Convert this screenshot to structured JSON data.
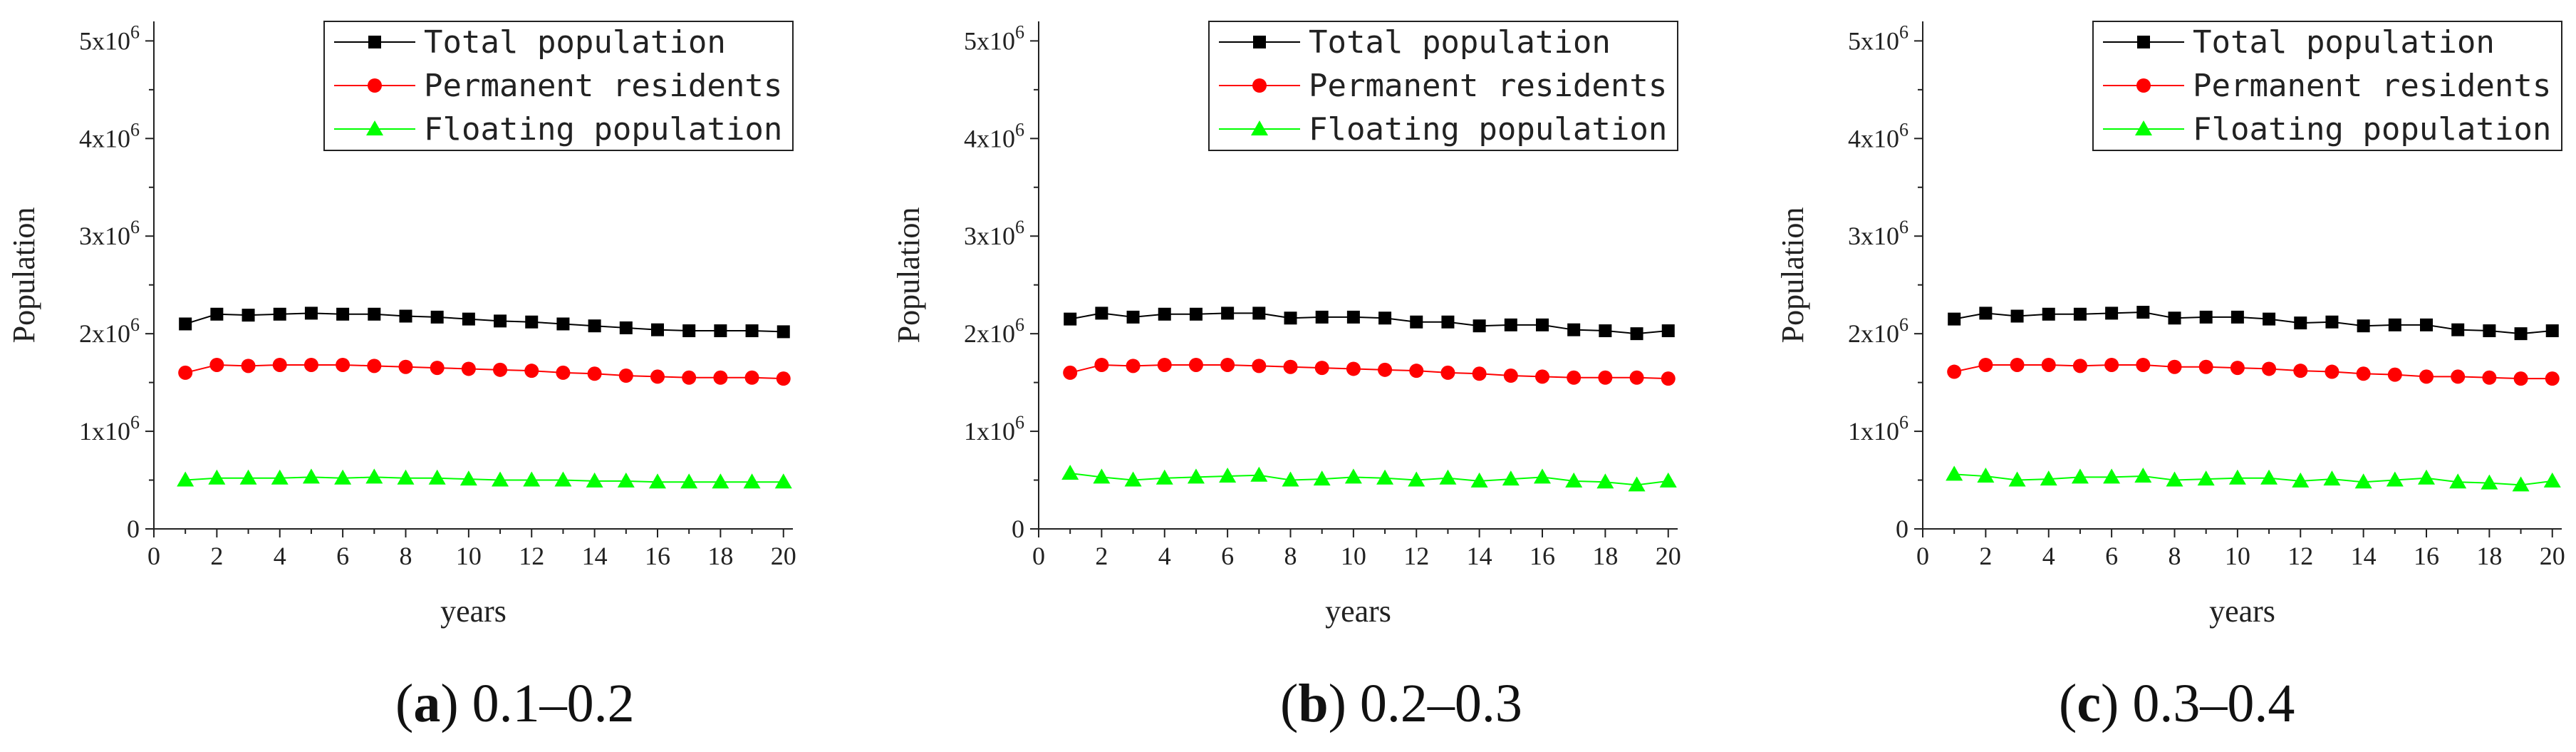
{
  "chart_data": [
    {
      "type": "line",
      "panel_label": "a",
      "caption": "0.1–0.2",
      "xlabel": "years",
      "ylabel": "Population",
      "xlim": [
        0,
        20.3
      ],
      "ylim": [
        0,
        5200000
      ],
      "x_ticks": [
        "0",
        "2",
        "4",
        "6",
        "8",
        "10",
        "12",
        "14",
        "16",
        "18",
        "20"
      ],
      "y_ticks": [
        {
          "label": "0",
          "value": 0
        },
        {
          "label": "1x10",
          "exp": "6",
          "value": 1000000
        },
        {
          "label": "2x10",
          "exp": "6",
          "value": 2000000
        },
        {
          "label": "3x10",
          "exp": "6",
          "value": 3000000
        },
        {
          "label": "4x10",
          "exp": "6",
          "value": 4000000
        },
        {
          "label": "5x10",
          "exp": "6",
          "value": 5000000
        }
      ],
      "legend_position": "top-right",
      "x": [
        1,
        2,
        3,
        4,
        5,
        6,
        7,
        8,
        9,
        10,
        11,
        12,
        13,
        14,
        15,
        16,
        17,
        18,
        19,
        20
      ],
      "series": [
        {
          "name": "Total population",
          "color": "#000000",
          "marker": "square",
          "values": [
            2100000,
            2200000,
            2190000,
            2200000,
            2210000,
            2200000,
            2200000,
            2180000,
            2170000,
            2150000,
            2130000,
            2120000,
            2100000,
            2080000,
            2060000,
            2040000,
            2030000,
            2030000,
            2030000,
            2020000
          ]
        },
        {
          "name": "Permanent residents",
          "color": "#ff0000",
          "marker": "circle",
          "values": [
            1600000,
            1680000,
            1670000,
            1680000,
            1680000,
            1680000,
            1670000,
            1660000,
            1650000,
            1640000,
            1630000,
            1620000,
            1600000,
            1590000,
            1570000,
            1560000,
            1550000,
            1550000,
            1550000,
            1540000
          ]
        },
        {
          "name": "Floating population",
          "color": "#00ff00",
          "marker": "triangle",
          "values": [
            500000,
            520000,
            520000,
            520000,
            530000,
            520000,
            530000,
            520000,
            520000,
            510000,
            500000,
            500000,
            500000,
            490000,
            490000,
            480000,
            480000,
            480000,
            480000,
            480000
          ]
        }
      ]
    },
    {
      "type": "line",
      "panel_label": "b",
      "caption": "0.2–0.3",
      "xlabel": "years",
      "ylabel": "Population",
      "xlim": [
        0,
        20.3
      ],
      "ylim": [
        0,
        5200000
      ],
      "x_ticks": [
        "0",
        "2",
        "4",
        "6",
        "8",
        "10",
        "12",
        "14",
        "16",
        "18",
        "20"
      ],
      "y_ticks": [
        {
          "label": "0",
          "value": 0
        },
        {
          "label": "1x10",
          "exp": "6",
          "value": 1000000
        },
        {
          "label": "2x10",
          "exp": "6",
          "value": 2000000
        },
        {
          "label": "3x10",
          "exp": "6",
          "value": 3000000
        },
        {
          "label": "4x10",
          "exp": "6",
          "value": 4000000
        },
        {
          "label": "5x10",
          "exp": "6",
          "value": 5000000
        }
      ],
      "legend_position": "top-right",
      "x": [
        1,
        2,
        3,
        4,
        5,
        6,
        7,
        8,
        9,
        10,
        11,
        12,
        13,
        14,
        15,
        16,
        17,
        18,
        19,
        20
      ],
      "series": [
        {
          "name": "Total population",
          "color": "#000000",
          "marker": "square",
          "values": [
            2150000,
            2210000,
            2170000,
            2200000,
            2200000,
            2210000,
            2210000,
            2160000,
            2170000,
            2170000,
            2160000,
            2120000,
            2120000,
            2080000,
            2090000,
            2090000,
            2040000,
            2030000,
            2000000,
            2030000
          ]
        },
        {
          "name": "Permanent residents",
          "color": "#ff0000",
          "marker": "circle",
          "values": [
            1600000,
            1680000,
            1670000,
            1680000,
            1680000,
            1680000,
            1670000,
            1660000,
            1650000,
            1640000,
            1630000,
            1620000,
            1600000,
            1590000,
            1570000,
            1560000,
            1550000,
            1550000,
            1550000,
            1540000
          ]
        },
        {
          "name": "Floating population",
          "color": "#00ff00",
          "marker": "triangle",
          "values": [
            570000,
            530000,
            500000,
            520000,
            530000,
            540000,
            550000,
            500000,
            510000,
            530000,
            520000,
            500000,
            520000,
            490000,
            510000,
            530000,
            490000,
            480000,
            450000,
            490000
          ]
        }
      ]
    },
    {
      "type": "line",
      "panel_label": "c",
      "caption": "0.3–0.4",
      "xlabel": "years",
      "ylabel": "Population",
      "xlim": [
        0,
        20.3
      ],
      "ylim": [
        0,
        5200000
      ],
      "x_ticks": [
        "0",
        "2",
        "4",
        "6",
        "8",
        "10",
        "12",
        "14",
        "16",
        "18",
        "20"
      ],
      "y_ticks": [
        {
          "label": "0",
          "value": 0
        },
        {
          "label": "1x10",
          "exp": "6",
          "value": 1000000
        },
        {
          "label": "2x10",
          "exp": "6",
          "value": 2000000
        },
        {
          "label": "3x10",
          "exp": "6",
          "value": 3000000
        },
        {
          "label": "4x10",
          "exp": "6",
          "value": 4000000
        },
        {
          "label": "5x10",
          "exp": "6",
          "value": 5000000
        }
      ],
      "legend_position": "top-right",
      "x": [
        1,
        2,
        3,
        4,
        5,
        6,
        7,
        8,
        9,
        10,
        11,
        12,
        13,
        14,
        15,
        16,
        17,
        18,
        19,
        20
      ],
      "series": [
        {
          "name": "Total population",
          "color": "#000000",
          "marker": "square",
          "values": [
            2150000,
            2210000,
            2180000,
            2200000,
            2200000,
            2210000,
            2220000,
            2160000,
            2170000,
            2170000,
            2150000,
            2110000,
            2120000,
            2080000,
            2090000,
            2090000,
            2040000,
            2030000,
            2000000,
            2030000
          ]
        },
        {
          "name": "Permanent residents",
          "color": "#ff0000",
          "marker": "circle",
          "values": [
            1610000,
            1680000,
            1680000,
            1680000,
            1670000,
            1680000,
            1680000,
            1660000,
            1660000,
            1650000,
            1640000,
            1620000,
            1610000,
            1590000,
            1580000,
            1560000,
            1560000,
            1550000,
            1540000,
            1540000
          ]
        },
        {
          "name": "Floating population",
          "color": "#00ff00",
          "marker": "triangle",
          "values": [
            560000,
            540000,
            500000,
            510000,
            530000,
            530000,
            540000,
            500000,
            510000,
            520000,
            520000,
            490000,
            510000,
            480000,
            500000,
            520000,
            480000,
            470000,
            450000,
            490000
          ]
        }
      ]
    }
  ]
}
